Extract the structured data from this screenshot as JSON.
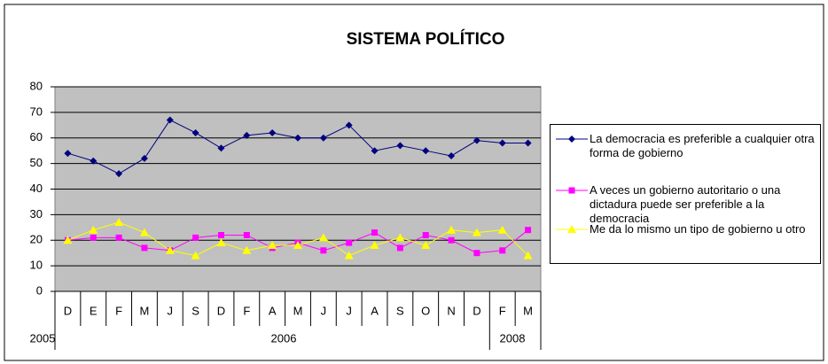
{
  "chart_data": {
    "type": "line",
    "title": "SISTEMA POLÍTICO",
    "categories": [
      "D",
      "E",
      "F",
      "M",
      "J",
      "S",
      "D",
      "F",
      "A",
      "M",
      "J",
      "J",
      "A",
      "S",
      "O",
      "N",
      "D",
      "F",
      "M"
    ],
    "year_labels": [
      "2005",
      "2006",
      "2008"
    ],
    "series": [
      {
        "name": "La democracia es preferible a cualquier otra forma de gobierno",
        "color": "#000080",
        "marker": "diamond",
        "values": [
          54,
          51,
          46,
          52,
          67,
          62,
          56,
          61,
          62,
          60,
          60,
          65,
          55,
          57,
          55,
          53,
          59,
          58,
          58
        ]
      },
      {
        "name": "A veces un gobierno autoritario o una dictadura puede ser preferible a la democracia",
        "color": "#ff00ff",
        "marker": "square",
        "values": [
          20,
          21,
          21,
          17,
          16,
          21,
          22,
          22,
          17,
          19,
          16,
          19,
          23,
          17,
          22,
          20,
          15,
          16,
          24
        ]
      },
      {
        "name": "Me da lo mismo un tipo de gobierno u otro",
        "color": "#ffff00",
        "marker": "triangle",
        "values": [
          20,
          24,
          27,
          23,
          16,
          14,
          19,
          16,
          18,
          18,
          21,
          14,
          18,
          21,
          18,
          24,
          23,
          24,
          14
        ]
      }
    ],
    "ylim": [
      0,
      80
    ],
    "yticks": [
      0,
      10,
      20,
      30,
      40,
      50,
      60,
      70,
      80
    ],
    "grid": true,
    "legend": "right"
  }
}
